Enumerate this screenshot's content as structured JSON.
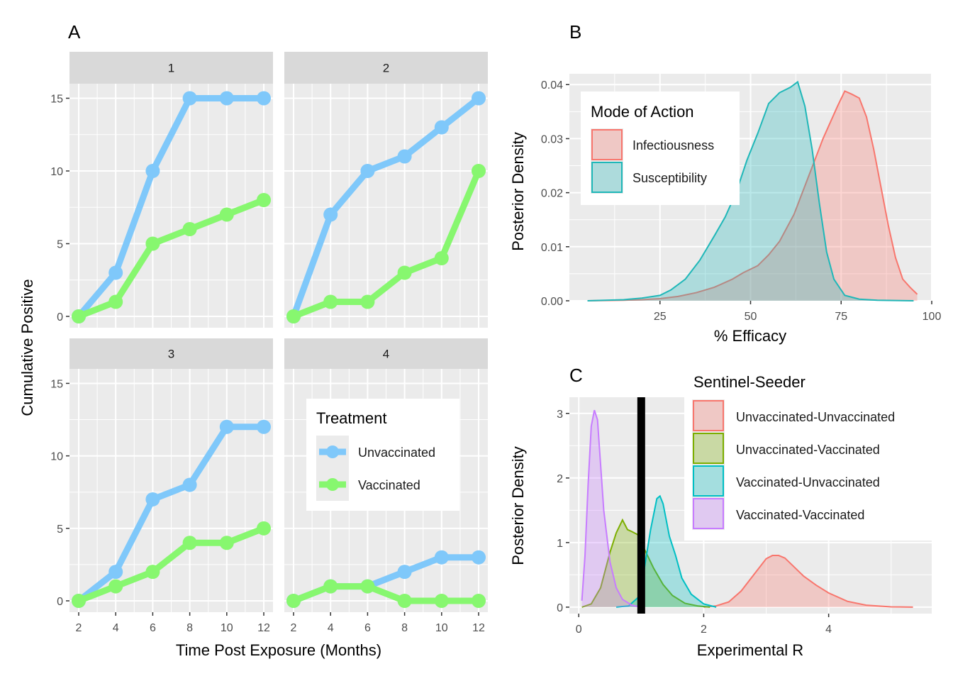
{
  "panels": {
    "A": {
      "letter": "A"
    },
    "B": {
      "letter": "B"
    },
    "C": {
      "letter": "C"
    }
  },
  "colors": {
    "panel_bg": "#EBEBEB",
    "grid": "#FFFFFF",
    "strip_bg": "#D9D9D9",
    "unvaccinated": "#7FC8FA",
    "vaccinated": "#87F76F",
    "infectiousness": "#F8766D",
    "susceptibility": "#1FB7B8",
    "uu": "#F8766D",
    "uv": "#7CAE00",
    "vu": "#00BFC4",
    "vv": "#C77CFF",
    "threshold": "#000000"
  },
  "chart_data": [
    {
      "id": "A",
      "type": "line",
      "xlabel": "Time Post Exposure (Months)",
      "ylabel": "Cumulative Positive",
      "x": [
        2,
        4,
        6,
        8,
        10,
        12
      ],
      "xlim": [
        2,
        12
      ],
      "ylim": [
        0,
        16
      ],
      "x_ticks": [
        "2",
        "4",
        "6",
        "8",
        "10",
        "12"
      ],
      "y_ticks": [
        "0",
        "5",
        "10",
        "15"
      ],
      "y_tick_values": [
        0,
        5,
        10,
        15
      ],
      "legend": {
        "title": "Treatment",
        "entries": [
          "Unvaccinated",
          "Vaccinated"
        ]
      },
      "facets": [
        {
          "label": "1",
          "series": [
            {
              "name": "Unvaccinated",
              "values": [
                0,
                3,
                10,
                15,
                15,
                15
              ]
            },
            {
              "name": "Vaccinated",
              "values": [
                0,
                1,
                5,
                6,
                7,
                8
              ]
            }
          ]
        },
        {
          "label": "2",
          "series": [
            {
              "name": "Unvaccinated",
              "values": [
                0,
                7,
                10,
                11,
                13,
                15
              ]
            },
            {
              "name": "Vaccinated",
              "values": [
                0,
                1,
                1,
                3,
                4,
                10
              ]
            }
          ]
        },
        {
          "label": "3",
          "series": [
            {
              "name": "Unvaccinated",
              "values": [
                0,
                2,
                7,
                8,
                12,
                12
              ]
            },
            {
              "name": "Vaccinated",
              "values": [
                0,
                1,
                2,
                4,
                4,
                5
              ]
            }
          ]
        },
        {
          "label": "4",
          "series": [
            {
              "name": "Unvaccinated",
              "values": [
                0,
                1,
                1,
                2,
                3,
                3
              ]
            },
            {
              "name": "Vaccinated",
              "values": [
                0,
                1,
                1,
                0,
                0,
                0
              ]
            }
          ]
        }
      ]
    },
    {
      "id": "B",
      "type": "area",
      "xlabel": "% Efficacy",
      "ylabel": "Posterior Density",
      "xlim": [
        0,
        100
      ],
      "ylim": [
        0,
        0.042
      ],
      "x_ticks": [
        "25",
        "50",
        "75",
        "100"
      ],
      "x_tick_values": [
        25,
        50,
        75,
        100
      ],
      "y_ticks": [
        "0.00",
        "0.01",
        "0.02",
        "0.03",
        "0.04"
      ],
      "y_tick_values": [
        0,
        0.01,
        0.02,
        0.03,
        0.04
      ],
      "legend": {
        "title": "Mode of Action",
        "position": "top-left"
      },
      "series": [
        {
          "name": "Infectiousness",
          "x": [
            5,
            15,
            20,
            25,
            30,
            35,
            40,
            45,
            48,
            52,
            55,
            58,
            62,
            66,
            70,
            74,
            76,
            78,
            80,
            82,
            84,
            86,
            88,
            90,
            92,
            94,
            96
          ],
          "y": [
            0,
            0.0001,
            0.0002,
            0.0004,
            0.0008,
            0.0015,
            0.0025,
            0.004,
            0.0052,
            0.0065,
            0.0085,
            0.011,
            0.016,
            0.023,
            0.03,
            0.036,
            0.0388,
            0.0382,
            0.0375,
            0.034,
            0.028,
            0.021,
            0.014,
            0.008,
            0.004,
            0.0025,
            0.0012
          ]
        },
        {
          "name": "Susceptibility",
          "x": [
            5,
            15,
            20,
            25,
            28,
            32,
            36,
            40,
            43,
            46,
            49,
            52,
            55,
            58,
            61,
            63,
            65,
            67,
            69,
            71,
            73,
            76,
            80,
            85,
            95
          ],
          "y": [
            0,
            0.0002,
            0.0005,
            0.001,
            0.002,
            0.004,
            0.0075,
            0.012,
            0.0155,
            0.02,
            0.026,
            0.031,
            0.0365,
            0.0385,
            0.0395,
            0.0405,
            0.036,
            0.028,
            0.018,
            0.009,
            0.004,
            0.001,
            0.0003,
            0.0001,
            0
          ]
        }
      ]
    },
    {
      "id": "C",
      "type": "area",
      "xlabel": "Experimental R",
      "ylabel": "Posterior Density",
      "xlim": [
        -0.15,
        5.65
      ],
      "ylim": [
        -0.1,
        3.25
      ],
      "x_ticks": [
        "0",
        "2",
        "4"
      ],
      "x_tick_values": [
        0,
        2,
        4
      ],
      "y_ticks": [
        "0",
        "1",
        "2",
        "3"
      ],
      "y_tick_values": [
        0,
        1,
        2,
        3
      ],
      "threshold_x": 1,
      "legend": {
        "title": "Sentinel-Seeder",
        "position": "top-right"
      },
      "series": [
        {
          "name": "Unvaccinated-Unvaccinated",
          "x": [
            2.0,
            2.2,
            2.4,
            2.6,
            2.8,
            3.0,
            3.1,
            3.2,
            3.3,
            3.45,
            3.6,
            3.8,
            4.0,
            4.3,
            4.6,
            5.0,
            5.35
          ],
          "y": [
            0,
            0.02,
            0.08,
            0.25,
            0.5,
            0.75,
            0.8,
            0.8,
            0.76,
            0.62,
            0.48,
            0.34,
            0.22,
            0.09,
            0.03,
            0.005,
            0
          ]
        },
        {
          "name": "Unvaccinated-Vaccinated",
          "x": [
            0.05,
            0.2,
            0.35,
            0.5,
            0.6,
            0.7,
            0.78,
            0.85,
            0.95,
            1.05,
            1.2,
            1.35,
            1.5,
            1.7,
            1.9,
            2.1
          ],
          "y": [
            0,
            0.05,
            0.3,
            0.85,
            1.15,
            1.35,
            1.2,
            1.17,
            1.12,
            0.9,
            0.6,
            0.35,
            0.18,
            0.06,
            0.02,
            0
          ]
        },
        {
          "name": "Vaccinated-Unvaccinated",
          "x": [
            0.6,
            0.8,
            0.95,
            1.05,
            1.15,
            1.25,
            1.3,
            1.35,
            1.45,
            1.55,
            1.65,
            1.8,
            2.0,
            2.2
          ],
          "y": [
            0,
            0.02,
            0.15,
            0.6,
            1.2,
            1.68,
            1.72,
            1.6,
            1.1,
            0.8,
            0.45,
            0.2,
            0.05,
            0
          ]
        },
        {
          "name": "Vaccinated-Vaccinated",
          "x": [
            0.05,
            0.1,
            0.15,
            0.2,
            0.25,
            0.3,
            0.35,
            0.4,
            0.5,
            0.6,
            0.7,
            0.85,
            1.0
          ],
          "y": [
            0.1,
            0.8,
            1.9,
            2.8,
            3.05,
            2.9,
            2.2,
            1.5,
            0.7,
            0.3,
            0.12,
            0.03,
            0
          ]
        }
      ]
    }
  ]
}
